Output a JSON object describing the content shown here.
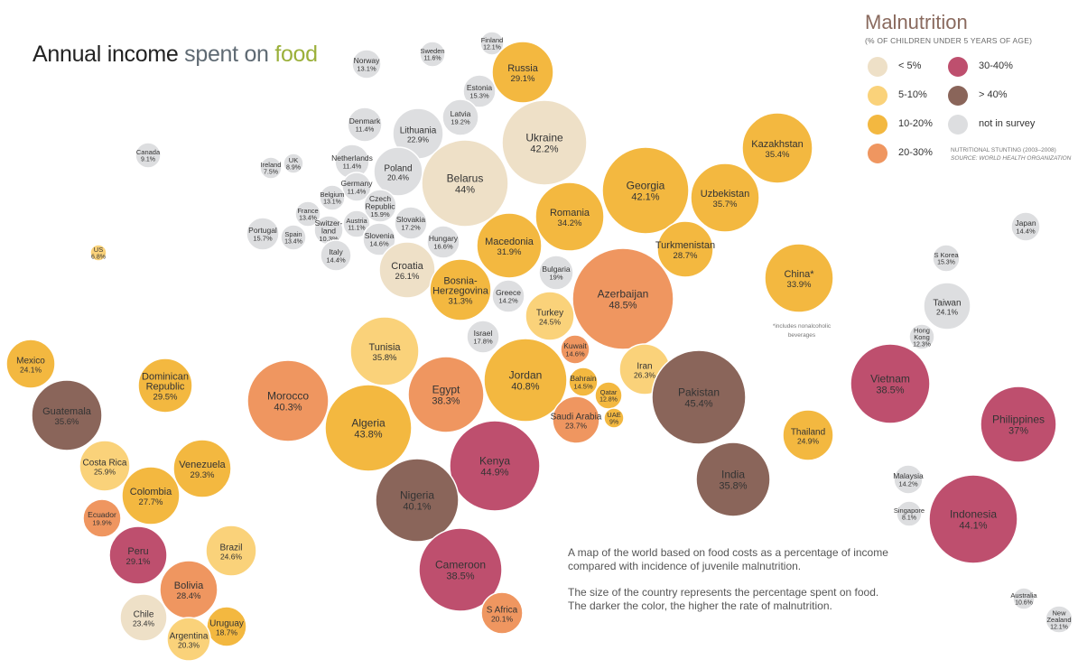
{
  "title": {
    "part1": "Annual income",
    "part2": "spent on",
    "part3": "food"
  },
  "legend": {
    "title": "Malnutrition",
    "subtitle": "(% OF CHILDREN UNDER 5 YEARS OF AGE)",
    "items": [
      {
        "key": "lt5",
        "label": "< 5%",
        "color": "#eee0c7"
      },
      {
        "key": "5to10",
        "label": "5-10%",
        "color": "#fad27a"
      },
      {
        "key": "10to20",
        "label": "10-20%",
        "color": "#f3b840"
      },
      {
        "key": "20to30",
        "label": "20-30%",
        "color": "#ef9660"
      },
      {
        "key": "30to40",
        "label": "30-40%",
        "color": "#be4f6e"
      },
      {
        "key": "gt40",
        "label": "> 40%",
        "color": "#8a655a"
      },
      {
        "key": "na",
        "label": "not in survey",
        "color": "#dddee0"
      }
    ],
    "source_line1": "NUTRITIONAL STUNTING (2003–2008)",
    "source_line2": "SOURCE: WORLD HEALTH ORGANIZATION"
  },
  "description": {
    "p1_line1": "A map of the world based on food costs as a percentage of income",
    "p1_line2": "compared with incidence of juvenile malnutrition.",
    "p2_line1": "The size of the country represents the percentage spent on food.",
    "p2_line2": "The darker the color, the higher the rate of malnutrition."
  },
  "china_note_line1": "*includes nonalcoholic",
  "china_note_line2": "beverages",
  "countries": [
    {
      "name": [
        "Finland"
      ],
      "value": "12.1%",
      "cat": "na"
    },
    {
      "name": [
        "Sweden"
      ],
      "value": "11.6%",
      "cat": "na"
    },
    {
      "name": [
        "Norway"
      ],
      "value": "13.1%",
      "cat": "na"
    },
    {
      "name": [
        "Russia"
      ],
      "value": "29.1%",
      "cat": "10to20"
    },
    {
      "name": [
        "Estonia"
      ],
      "value": "15.3%",
      "cat": "na"
    },
    {
      "name": [
        "Latvia"
      ],
      "value": "19.2%",
      "cat": "na"
    },
    {
      "name": [
        "Denmark"
      ],
      "value": "11.4%",
      "cat": "na"
    },
    {
      "name": [
        "Lithuania"
      ],
      "value": "22.9%",
      "cat": "na"
    },
    {
      "name": [
        "Ukraine"
      ],
      "value": "42.2%",
      "cat": "lt5"
    },
    {
      "name": [
        "Canada"
      ],
      "value": "9.1%",
      "cat": "na"
    },
    {
      "name": [
        "Ireland"
      ],
      "value": "7.5%",
      "cat": "na"
    },
    {
      "name": [
        "UK"
      ],
      "value": "8.9%",
      "cat": "na"
    },
    {
      "name": [
        "Netherlands"
      ],
      "value": "11.4%",
      "cat": "na"
    },
    {
      "name": [
        "Poland"
      ],
      "value": "20.4%",
      "cat": "na"
    },
    {
      "name": [
        "Belarus"
      ],
      "value": "44%",
      "cat": "lt5"
    },
    {
      "name": [
        "Georgia"
      ],
      "value": "42.1%",
      "cat": "10to20"
    },
    {
      "name": [
        "Kazakhstan"
      ],
      "value": "35.4%",
      "cat": "10to20"
    },
    {
      "name": [
        "Germany"
      ],
      "value": "11.4%",
      "cat": "na"
    },
    {
      "name": [
        "Belgium"
      ],
      "value": "13.1%",
      "cat": "na"
    },
    {
      "name": [
        "Czech",
        "Republic"
      ],
      "value": "15.9%",
      "cat": "na"
    },
    {
      "name": [
        "France"
      ],
      "value": "13.4%",
      "cat": "na"
    },
    {
      "name": [
        "Slovakia"
      ],
      "value": "17.2%",
      "cat": "na"
    },
    {
      "name": [
        "Austria"
      ],
      "value": "11.1%",
      "cat": "na"
    },
    {
      "name": [
        "Switzer-",
        "land"
      ],
      "value": "10.3%",
      "cat": "na"
    },
    {
      "name": [
        "Portugal"
      ],
      "value": "15.7%",
      "cat": "na"
    },
    {
      "name": [
        "Spain"
      ],
      "value": "13.4%",
      "cat": "na"
    },
    {
      "name": [
        "Slovenia"
      ],
      "value": "14.6%",
      "cat": "na"
    },
    {
      "name": [
        "Hungary"
      ],
      "value": "16.6%",
      "cat": "na"
    },
    {
      "name": [
        "Romania"
      ],
      "value": "34.2%",
      "cat": "10to20"
    },
    {
      "name": [
        "Uzbekistan"
      ],
      "value": "35.7%",
      "cat": "10to20"
    },
    {
      "name": [
        "Japan"
      ],
      "value": "14.4%",
      "cat": "na"
    },
    {
      "name": [
        "US"
      ],
      "value": "6.8%",
      "cat": "5to10"
    },
    {
      "name": [
        "Italy"
      ],
      "value": "14.4%",
      "cat": "na"
    },
    {
      "name": [
        "Croatia"
      ],
      "value": "26.1%",
      "cat": "lt5"
    },
    {
      "name": [
        "Macedonia"
      ],
      "value": "31.9%",
      "cat": "10to20"
    },
    {
      "name": [
        "Turkmenistan"
      ],
      "value": "28.7%",
      "cat": "10to20"
    },
    {
      "name": [
        "S Korea"
      ],
      "value": "15.3%",
      "cat": "na"
    },
    {
      "name": [
        "Bulgaria"
      ],
      "value": "19%",
      "cat": "na"
    },
    {
      "name": [
        "China*"
      ],
      "value": "33.9%",
      "cat": "10to20"
    },
    {
      "name": [
        "Bosnia-",
        "Herzegovina"
      ],
      "value": "31.3%",
      "cat": "10to20"
    },
    {
      "name": [
        "Greece"
      ],
      "value": "14.2%",
      "cat": "na"
    },
    {
      "name": [
        "Azerbaijan"
      ],
      "value": "48.5%",
      "cat": "20to30"
    },
    {
      "name": [
        "Taiwan"
      ],
      "value": "24.1%",
      "cat": "na"
    },
    {
      "name": [
        "Turkey"
      ],
      "value": "24.5%",
      "cat": "5to10"
    },
    {
      "name": [
        "Hong",
        "Kong"
      ],
      "value": "12.3%",
      "cat": "na"
    },
    {
      "name": [
        "Israel"
      ],
      "value": "17.8%",
      "cat": "na"
    },
    {
      "name": [
        "Tunisia"
      ],
      "value": "35.8%",
      "cat": "5to10"
    },
    {
      "name": [
        "Kuwait"
      ],
      "value": "14.6%",
      "cat": "20to30"
    },
    {
      "name": [
        "Mexico"
      ],
      "value": "24.1%",
      "cat": "10to20"
    },
    {
      "name": [
        "Iran"
      ],
      "value": "26.3%",
      "cat": "5to10"
    },
    {
      "name": [
        "Bahrain"
      ],
      "value": "14.5%",
      "cat": "10to20"
    },
    {
      "name": [
        "Jordan"
      ],
      "value": "40.8%",
      "cat": "10to20"
    },
    {
      "name": [
        "Dominican",
        "Republic"
      ],
      "value": "29.5%",
      "cat": "10to20"
    },
    {
      "name": [
        "Egypt"
      ],
      "value": "38.3%",
      "cat": "20to30"
    },
    {
      "name": [
        "Morocco"
      ],
      "value": "40.3%",
      "cat": "20to30"
    },
    {
      "name": [
        "Vietnam"
      ],
      "value": "38.5%",
      "cat": "30to40"
    },
    {
      "name": [
        "Qatar"
      ],
      "value": "12.8%",
      "cat": "10to20"
    },
    {
      "name": [
        "Pakistan"
      ],
      "value": "45.4%",
      "cat": "gt40"
    },
    {
      "name": [
        "Guatemala"
      ],
      "value": "35.6%",
      "cat": "gt40"
    },
    {
      "name": [
        "UAE"
      ],
      "value": "9%",
      "cat": "10to20"
    },
    {
      "name": [
        "Saudi Arabia"
      ],
      "value": "23.7%",
      "cat": "20to30"
    },
    {
      "name": [
        "Philippines"
      ],
      "value": "37%",
      "cat": "30to40"
    },
    {
      "name": [
        "Algeria"
      ],
      "value": "43.8%",
      "cat": "10to20"
    },
    {
      "name": [
        "Thailand"
      ],
      "value": "24.9%",
      "cat": "10to20"
    },
    {
      "name": [
        "Kenya"
      ],
      "value": "44.9%",
      "cat": "30to40"
    },
    {
      "name": [
        "Costa Rica"
      ],
      "value": "25.9%",
      "cat": "5to10"
    },
    {
      "name": [
        "Venezuela"
      ],
      "value": "29.3%",
      "cat": "10to20"
    },
    {
      "name": [
        "India"
      ],
      "value": "35.8%",
      "cat": "gt40"
    },
    {
      "name": [
        "Malaysia"
      ],
      "value": "14.2%",
      "cat": "na"
    },
    {
      "name": [
        "Colombia"
      ],
      "value": "27.7%",
      "cat": "10to20"
    },
    {
      "name": [
        "Nigeria"
      ],
      "value": "40.1%",
      "cat": "gt40"
    },
    {
      "name": [
        "Ecuador"
      ],
      "value": "19.9%",
      "cat": "20to30"
    },
    {
      "name": [
        "Singapore"
      ],
      "value": "8.1%",
      "cat": "na"
    },
    {
      "name": [
        "Indonesia"
      ],
      "value": "44.1%",
      "cat": "30to40"
    },
    {
      "name": [
        "Brazil"
      ],
      "value": "24.6%",
      "cat": "5to10"
    },
    {
      "name": [
        "Peru"
      ],
      "value": "29.1%",
      "cat": "30to40"
    },
    {
      "name": [
        "Cameroon"
      ],
      "value": "38.5%",
      "cat": "30to40"
    },
    {
      "name": [
        "Bolivia"
      ],
      "value": "28.4%",
      "cat": "20to30"
    },
    {
      "name": [
        "Australia"
      ],
      "value": "10.6%",
      "cat": "na"
    },
    {
      "name": [
        "S Africa"
      ],
      "value": "20.1%",
      "cat": "20to30"
    },
    {
      "name": [
        "Chile"
      ],
      "value": "23.4%",
      "cat": "lt5"
    },
    {
      "name": [
        "Uruguay"
      ],
      "value": "18.7%",
      "cat": "10to20"
    },
    {
      "name": [
        "New",
        "Zealand"
      ],
      "value": "12.1%",
      "cat": "na"
    },
    {
      "name": [
        "Argentina"
      ],
      "value": "20.3%",
      "cat": "5to10"
    }
  ]
}
